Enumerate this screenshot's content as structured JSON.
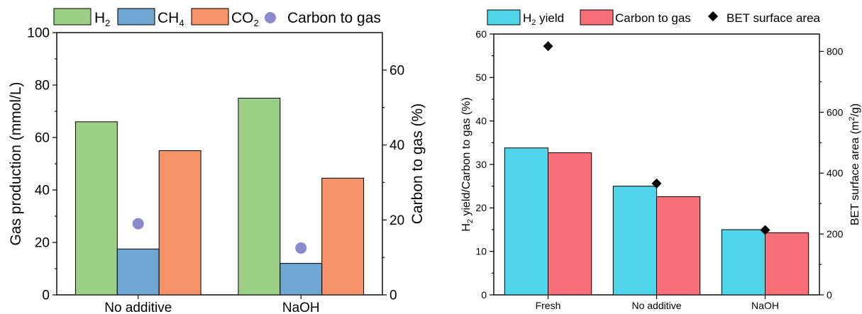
{
  "chart_data": [
    {
      "type": "bar",
      "categories": [
        "No additive",
        "NaOH"
      ],
      "series": [
        {
          "name": "H",
          "sub": "2",
          "values": [
            66,
            75
          ],
          "color": "#9ccf86"
        },
        {
          "name": "CH",
          "sub": "4",
          "values": [
            17.5,
            12
          ],
          "color": "#6fa6d2"
        },
        {
          "name": "CO",
          "sub": "2",
          "values": [
            55,
            44.5
          ],
          "color": "#f5946a"
        }
      ],
      "scatter_series": {
        "name": "Carbon to gas",
        "values": [
          19,
          12.5
        ],
        "color": "#8b8bcb",
        "axis": "right"
      },
      "ylabel": "Gas production (mmol/L)",
      "ylim": [
        0,
        100
      ],
      "yticks": [
        "0",
        "20",
        "40",
        "60",
        "80",
        "100"
      ],
      "y2label": "Carbon to gas (%)",
      "y2lim": [
        0,
        70
      ],
      "y2ticks": [
        "0",
        "20",
        "40",
        "60"
      ],
      "legend_placement": "top"
    },
    {
      "type": "bar",
      "categories": [
        "Fresh",
        "No additive",
        "NaOH"
      ],
      "series": [
        {
          "name": "H",
          "sub": "2",
          "suffix": " yield",
          "values": [
            33.8,
            25,
            15
          ],
          "color": "#4fd4ea"
        },
        {
          "name": "Carbon to gas",
          "values": [
            32.7,
            22.6,
            14.3
          ],
          "color": "#f76f78"
        }
      ],
      "scatter_series": {
        "name": "BET surface area",
        "values": [
          817,
          366,
          213
        ],
        "color": "#000000",
        "axis": "right"
      },
      "ylabel_parts": [
        "H",
        "2",
        " yield/Carbon to gas (%)"
      ],
      "ylim": [
        0,
        60
      ],
      "yticks": [
        "0",
        "10",
        "20",
        "30",
        "40",
        "50",
        "60"
      ],
      "y2label_parts": [
        "BET surface area (m",
        "2",
        "/g)"
      ],
      "y2lim": [
        0,
        857
      ],
      "y2ticks": [
        "0",
        "200",
        "400",
        "600",
        "800"
      ],
      "legend_placement": "top"
    }
  ]
}
